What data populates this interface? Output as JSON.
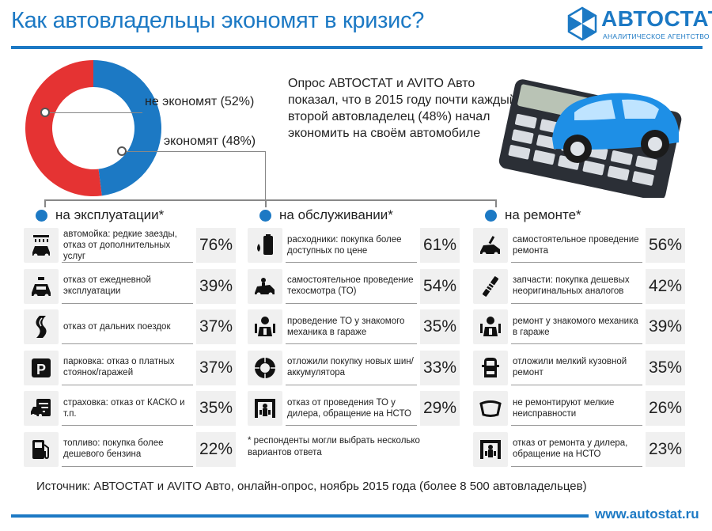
{
  "header": {
    "title": "Как автовладельцы экономят в кризис?",
    "logo_name": "АВТОСТАТ",
    "logo_subtitle": "АНАЛИТИЧЕСКОЕ АГЕНТСТВО"
  },
  "colors": {
    "accent": "#1c79c4",
    "red": "#e53333",
    "row_bg": "#f0f0f0"
  },
  "chart_data": {
    "type": "pie",
    "categories": [
      "не экономят",
      "экономят"
    ],
    "values": [
      52,
      48
    ],
    "colors": [
      "#e53333",
      "#1c79c4"
    ],
    "labels": [
      "не экономят (52%)",
      "экономят (48%)"
    ]
  },
  "intro": "Опрос АВТОСТАТ и AVITO Авто показал, что в 2015 году почти каждый второй автовладелец (48%) начал экономить на своём автомобиле",
  "columns": [
    {
      "heading": "на эксплуатации*",
      "items": [
        {
          "icon": "car-wash-icon",
          "text": "автомойка: редкие заезды, отказ от дополнительных услуг",
          "pct": "76%"
        },
        {
          "icon": "taxi-icon",
          "text": "отказ от ежедневной эксплуатации",
          "pct": "39%"
        },
        {
          "icon": "road-icon",
          "text": "отказ от дальних поездок",
          "pct": "37%"
        },
        {
          "icon": "parking-icon",
          "text": "парковка: отказ о платных стоянок/гаражей",
          "pct": "37%"
        },
        {
          "icon": "insurance-icon",
          "text": "страховка: отказ от КАСКО и т.п.",
          "pct": "35%"
        },
        {
          "icon": "fuel-icon",
          "text": "топливо: покупка более дешевого бензина",
          "pct": "22%"
        }
      ]
    },
    {
      "heading": "на обслуживании*",
      "items": [
        {
          "icon": "consumables-icon",
          "text": "расходники: покупка более доступных по цене",
          "pct": "61%"
        },
        {
          "icon": "self-service-icon",
          "text": "самостоятельное проведение техосмотра (ТО)",
          "pct": "54%"
        },
        {
          "icon": "mechanic-icon",
          "text": "проведение ТО у знакомого механика в гараже",
          "pct": "35%"
        },
        {
          "icon": "tire-icon",
          "text": "отложили покупку новых шин/аккумулятора",
          "pct": "33%"
        },
        {
          "icon": "dealer-icon",
          "text": "отказ от проведения ТО у дилера, обращение на НСТО",
          "pct": "29%"
        }
      ]
    },
    {
      "heading": "на ремонте*",
      "items": [
        {
          "icon": "self-repair-icon",
          "text": "самостоятельное проведение ремонта",
          "pct": "56%"
        },
        {
          "icon": "spare-part-icon",
          "text": "запчасти: покупка дешевых неоригинальных аналогов",
          "pct": "42%"
        },
        {
          "icon": "mechanic-icon",
          "text": "ремонт у знакомого механика в гараже",
          "pct": "39%"
        },
        {
          "icon": "car-body-icon",
          "text": "отложили мелкий кузовной ремонт",
          "pct": "35%"
        },
        {
          "icon": "windshield-icon",
          "text": "не ремонтируют мелкие неисправности",
          "pct": "26%"
        },
        {
          "icon": "dealer-icon",
          "text": "отказ от ремонта у дилера, обращение на НСТО",
          "pct": "23%"
        }
      ]
    }
  ],
  "footnote": "* респонденты могли выбрать несколько вариантов ответа",
  "source": "Источник: АВТОСТАТ и AVITO Авто, онлайн-опрос, ноябрь 2015 года (более 8 500 автовладельцев)",
  "url": "www.autostat.ru"
}
